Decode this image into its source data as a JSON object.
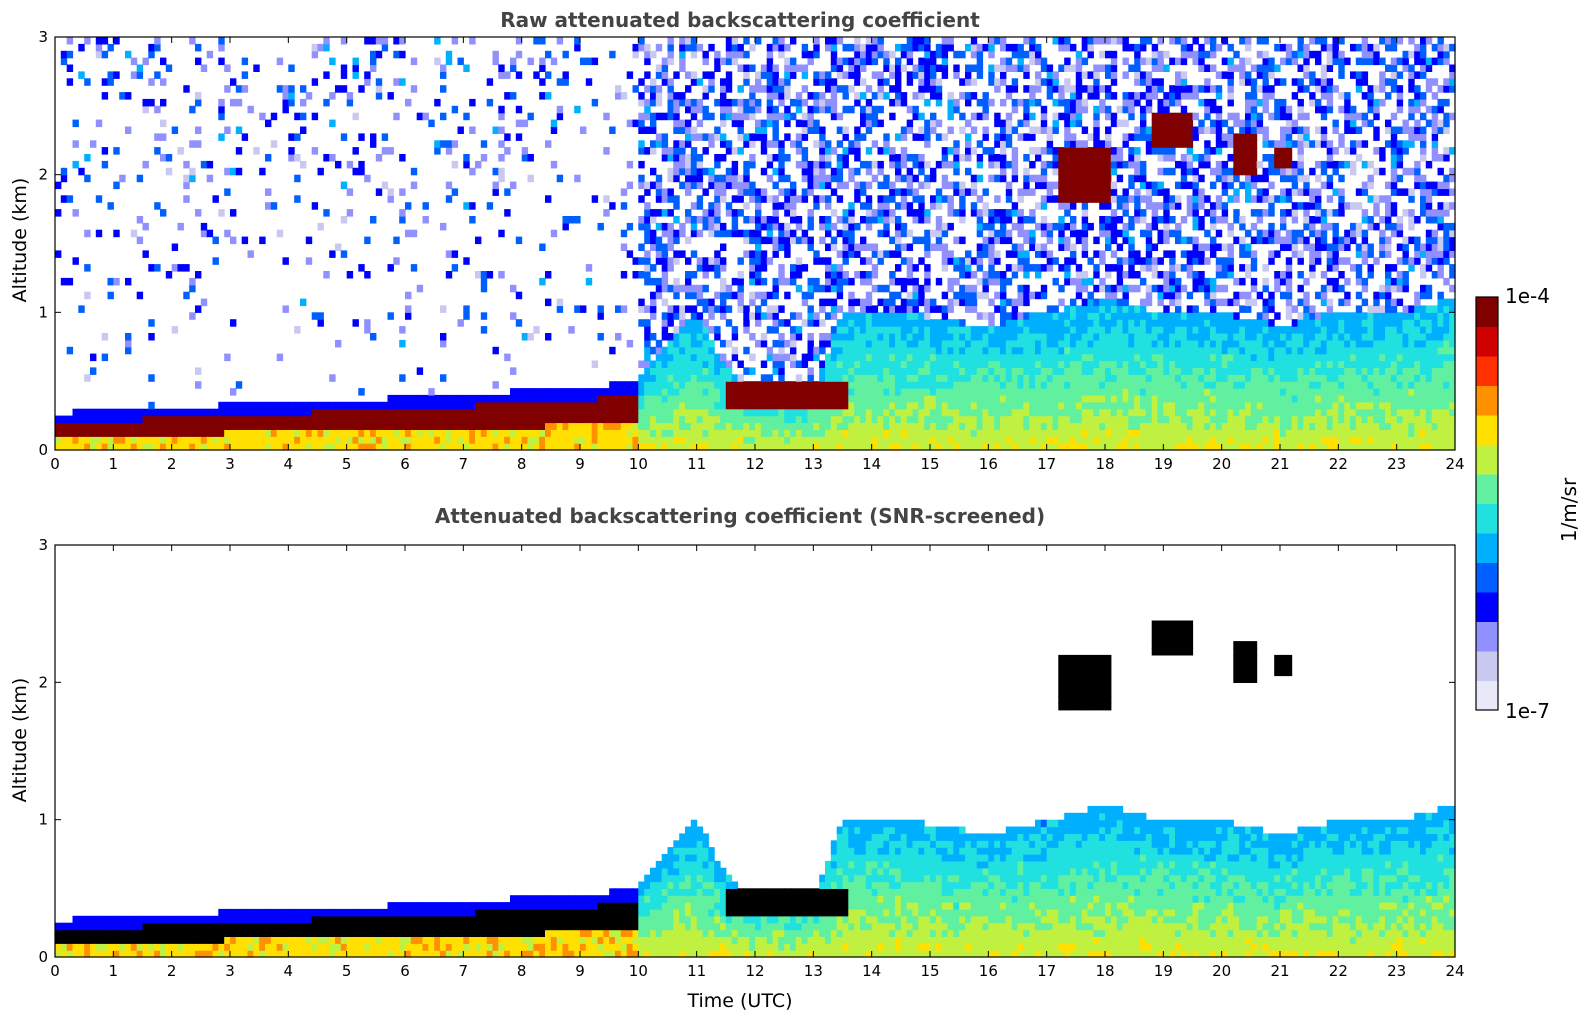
{
  "chart_data": [
    {
      "type": "heatmap",
      "title": "Raw attenuated backscattering coefficient",
      "xlabel": "",
      "ylabel": "Altitude (km)",
      "xlim": [
        0,
        24
      ],
      "ylim": [
        0,
        3
      ],
      "xticks": [
        "0",
        "1",
        "2",
        "3",
        "4",
        "5",
        "6",
        "7",
        "8",
        "9",
        "10",
        "11",
        "12",
        "13",
        "14",
        "15",
        "16",
        "17",
        "18",
        "19",
        "20",
        "21",
        "22",
        "23",
        "24"
      ],
      "yticks": [
        "0",
        "1",
        "2",
        "3"
      ],
      "color_scale": "jet, log 1e-7 to 1e-4",
      "features": {
        "aerosol_layer_top_km": [
          [
            0,
            0.22
          ],
          [
            3,
            0.28
          ],
          [
            4,
            0.3
          ],
          [
            6,
            0.33
          ],
          [
            8,
            0.38
          ],
          [
            9,
            0.4
          ],
          [
            10,
            0.45
          ]
        ],
        "boundary_layer_top_km": [
          [
            10,
            0.55
          ],
          [
            11,
            1.0
          ],
          [
            11.5,
            0.6
          ],
          [
            12,
            0.45
          ],
          [
            13,
            0.45
          ],
          [
            13.5,
            1.0
          ],
          [
            14.5,
            1.0
          ],
          [
            16,
            0.9
          ],
          [
            17,
            1.0
          ],
          [
            18,
            1.1
          ],
          [
            19,
            1.0
          ],
          [
            20,
            1.0
          ],
          [
            21,
            0.9
          ],
          [
            22,
            1.0
          ],
          [
            23,
            1.0
          ],
          [
            24,
            1.1
          ]
        ],
        "cloud_layers": [
          {
            "t_start": 11.5,
            "t_end": 13.6,
            "base_km": 0.3,
            "top_km": 0.5
          },
          {
            "t_start": 17.2,
            "t_end": 18.1,
            "base_km": 1.8,
            "top_km": 2.2
          },
          {
            "t_start": 18.8,
            "t_end": 19.5,
            "base_km": 2.2,
            "top_km": 2.45
          },
          {
            "t_start": 20.2,
            "t_end": 20.6,
            "base_km": 2.0,
            "top_km": 2.3
          },
          {
            "t_start": 20.9,
            "t_end": 21.2,
            "base_km": 2.05,
            "top_km": 2.2
          }
        ],
        "noise_increase_after_utc": 10
      }
    },
    {
      "type": "heatmap",
      "title": "Attenuated backscattering coefficient (SNR-screened)",
      "xlabel": "Time (UTC)",
      "ylabel": "Altitude (km)",
      "xlim": [
        0,
        24
      ],
      "ylim": [
        0,
        3
      ],
      "xticks": [
        "0",
        "1",
        "2",
        "3",
        "4",
        "5",
        "6",
        "7",
        "8",
        "9",
        "10",
        "11",
        "12",
        "13",
        "14",
        "15",
        "16",
        "17",
        "18",
        "19",
        "20",
        "21",
        "22",
        "23",
        "24"
      ],
      "yticks": [
        "0",
        "1",
        "2",
        "3"
      ],
      "color_scale": "jet, log 1e-7 to 1e-4"
    }
  ],
  "colorbar": {
    "label": "1/m/sr",
    "max_label": "1e-4",
    "min_label": "1e-7",
    "colors": [
      "#e8e8f8",
      "#c8c8f0",
      "#9090ff",
      "#0000ff",
      "#0060ff",
      "#00b0ff",
      "#20e0e0",
      "#60f0a0",
      "#c0f040",
      "#ffe000",
      "#ff9000",
      "#ff3000",
      "#d00000",
      "#800000"
    ]
  },
  "colors": {
    "low": "#0000cc",
    "mid": "#00c0ff",
    "high": "#800000",
    "masked": "#000000"
  }
}
